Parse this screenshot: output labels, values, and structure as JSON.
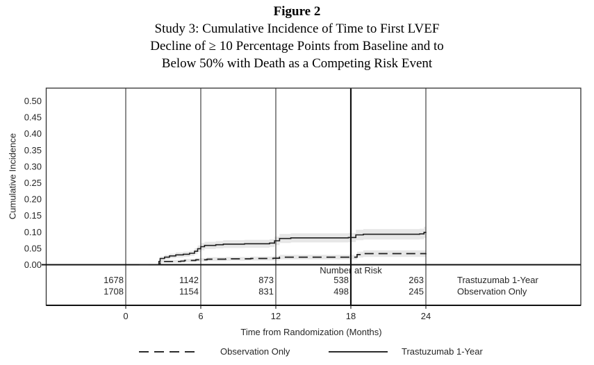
{
  "figure": {
    "label": "Figure 2",
    "title_lines": [
      "Study 3: Cumulative Incidence of Time to First LVEF",
      "Decline of ≥ 10 Percentage Points from Baseline and to",
      "Below 50% with Death as a Competing Risk Event"
    ]
  },
  "chart_data": {
    "type": "line",
    "subtype": "cumulative-incidence-step-curves-with-confidence-bands",
    "xlabel": "Time from Randomization (Months)",
    "ylabel": "Cumulative Incidence",
    "xlim": [
      0,
      24
    ],
    "ylim": [
      0,
      0.5
    ],
    "xticks": [
      0,
      6,
      12,
      18,
      24
    ],
    "xtick_labels": [
      "0",
      "6",
      "12",
      "18",
      "24"
    ],
    "yticks": [
      0,
      0.05,
      0.1,
      0.15,
      0.2,
      0.25,
      0.3,
      0.35,
      0.4,
      0.45,
      0.5
    ],
    "ytick_labels": [
      "0.00",
      "0.05",
      "0.10",
      "0.15",
      "0.20",
      "0.25",
      "0.30",
      "0.35",
      "0.40",
      "0.45",
      "0.50"
    ],
    "grid": "vertical gridlines at each x tick, spanning plot and number-at-risk panel",
    "reference_line_x": 18,
    "colors": {
      "line": "#1d1d1d",
      "grid": "#2f2f2f",
      "frame": "#2f2f2f",
      "emphasis": "#111111",
      "band": "#e7e7e7",
      "text": "#262626"
    },
    "series": [
      {
        "name": "Trastuzumab 1-Year",
        "line_style": "solid",
        "points_note": "step points as [month, cumulative incidence, CI half-width]",
        "points": [
          [
            1.1,
            0,
            0
          ],
          [
            2.55,
            0,
            0.004
          ],
          [
            2.65,
            0.01,
            0.005
          ],
          [
            2.75,
            0.019,
            0.006
          ],
          [
            3.1,
            0.023,
            0.007
          ],
          [
            3.5,
            0.027,
            0.007
          ],
          [
            4.0,
            0.03,
            0.008
          ],
          [
            4.6,
            0.032,
            0.008
          ],
          [
            5.1,
            0.035,
            0.008
          ],
          [
            5.5,
            0.041,
            0.009
          ],
          [
            5.75,
            0.049,
            0.01
          ],
          [
            6.0,
            0.055,
            0.011
          ],
          [
            6.3,
            0.059,
            0.011
          ],
          [
            7.2,
            0.061,
            0.011
          ],
          [
            7.8,
            0.063,
            0.012
          ],
          [
            9.5,
            0.064,
            0.012
          ],
          [
            11.5,
            0.066,
            0.012
          ],
          [
            11.9,
            0.073,
            0.013
          ],
          [
            12.3,
            0.08,
            0.014
          ],
          [
            13.2,
            0.082,
            0.014
          ],
          [
            17.8,
            0.083,
            0.014
          ],
          [
            18.4,
            0.091,
            0.016
          ],
          [
            19.0,
            0.093,
            0.016
          ],
          [
            23.5,
            0.094,
            0.016
          ],
          [
            23.85,
            0.099,
            0.017
          ],
          [
            24,
            0.1,
            0.017
          ]
        ]
      },
      {
        "name": "Observation Only",
        "line_style": "dashed",
        "points_note": "step points as [month, cumulative incidence, CI half-width]",
        "points": [
          [
            1.1,
            0,
            0
          ],
          [
            2.6,
            0,
            0.003
          ],
          [
            2.75,
            0.01,
            0.004
          ],
          [
            4.4,
            0.011,
            0.005
          ],
          [
            4.7,
            0.013,
            0.005
          ],
          [
            5.6,
            0.015,
            0.005
          ],
          [
            6.5,
            0.017,
            0.006
          ],
          [
            8.0,
            0.018,
            0.006
          ],
          [
            10.0,
            0.019,
            0.006
          ],
          [
            11.8,
            0.02,
            0.007
          ],
          [
            12.3,
            0.023,
            0.007
          ],
          [
            17.9,
            0.023,
            0.007
          ],
          [
            18.5,
            0.031,
            0.009
          ],
          [
            19.0,
            0.034,
            0.01
          ],
          [
            24,
            0.035,
            0.01
          ]
        ]
      }
    ],
    "number_at_risk": {
      "label": "Number at Risk",
      "times": [
        0,
        6,
        12,
        18,
        24
      ],
      "rows": [
        {
          "name": "Trastuzumab 1-Year",
          "counts": [
            "1678",
            "1142",
            "873",
            "538",
            "263"
          ]
        },
        {
          "name": "Observation Only",
          "counts": [
            "1708",
            "1154",
            "831",
            "498",
            "245"
          ]
        }
      ]
    },
    "legend": {
      "position": "bottom",
      "entries": [
        {
          "label": "Observation Only",
          "style": "dashed"
        },
        {
          "label": "Trastuzumab 1-Year",
          "style": "solid"
        }
      ]
    }
  }
}
